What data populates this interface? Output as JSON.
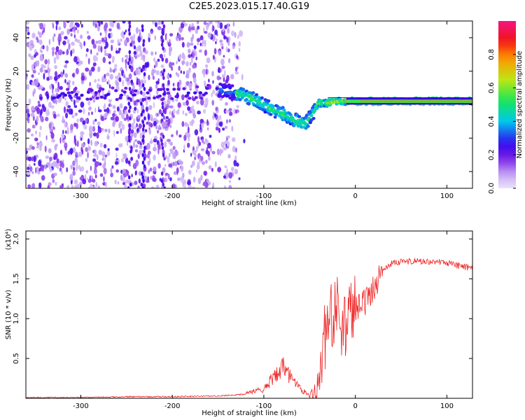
{
  "figure": {
    "title": "C2E5.2023.015.17.40.G19"
  },
  "colors": {
    "snr_line": "#ee2222",
    "frame": "#000000",
    "background": "#ffffff"
  },
  "chart_data": [
    {
      "type": "heatmap",
      "title": "C2E5.2023.015.17.40.G19",
      "xlabel": "Height of straight line (km)",
      "ylabel": "Frequency (Hz)",
      "xlim": [
        -360,
        128
      ],
      "ylim": [
        -50,
        50
      ],
      "xticks": [
        -300,
        -200,
        -100,
        0,
        100
      ],
      "yticks": [
        -40,
        -20,
        0,
        20,
        40
      ],
      "grid": false,
      "colorbar": {
        "label": "Normalized spectral amplitude",
        "range": [
          0.0,
          1.0
        ],
        "ticks": [
          "0.0",
          "0.2",
          "0.4",
          "0.6",
          "0.8"
        ],
        "colormap": "rainbow (lavender-purple-blue-cyan-green-yellow-red-magenta)"
      },
      "ridge": {
        "description": "spectral ridge following the frequency offset",
        "x": [
          -330,
          -300,
          -250,
          -200,
          -170,
          -150,
          -130,
          -110,
          -90,
          -70,
          -55,
          -45,
          -40,
          -30,
          -20,
          -10,
          0,
          50,
          100,
          128
        ],
        "y": [
          5,
          6,
          6,
          7,
          7,
          9,
          7,
          3,
          -3,
          -8,
          -12,
          -4,
          1,
          1,
          2,
          2,
          2,
          2,
          2,
          2
        ]
      }
    },
    {
      "type": "line",
      "xlabel": "Height of straight line (km)",
      "ylabel": "SNR (10 * v/v)",
      "y_multiplier": "(x10⁴)",
      "xlim": [
        -360,
        128
      ],
      "ylim": [
        0,
        2.1
      ],
      "xticks": [
        -300,
        -200,
        -100,
        0,
        100
      ],
      "yticks": [
        0.5,
        1.0,
        1.5,
        2.0
      ],
      "grid": false,
      "series": [
        {
          "color": "#ee2222",
          "x": [
            -360,
            -300,
            -250,
            -200,
            -150,
            -120,
            -100,
            -90,
            -80,
            -75,
            -70,
            -60,
            -50,
            -45,
            -40,
            -35,
            -30,
            -25,
            -20,
            -15,
            -10,
            0,
            10,
            20,
            30,
            40,
            60,
            80,
            100,
            110,
            128
          ],
          "y": [
            0.01,
            0.01,
            0.02,
            0.02,
            0.03,
            0.05,
            0.1,
            0.22,
            0.32,
            0.3,
            0.2,
            0.1,
            0.03,
            0.04,
            0.2,
            0.6,
            1.1,
            1.0,
            1.2,
            0.9,
            0.95,
            1.1,
            1.2,
            1.4,
            1.6,
            1.7,
            1.72,
            1.72,
            1.7,
            1.67,
            1.63
          ]
        }
      ]
    }
  ]
}
